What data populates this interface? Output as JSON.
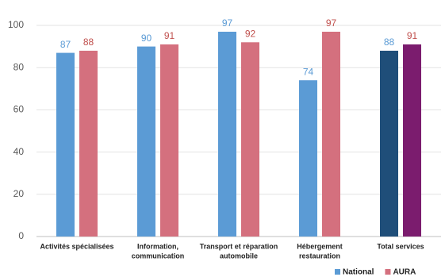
{
  "chart_data": {
    "type": "bar",
    "categories": [
      [
        "Activités spécialisées"
      ],
      [
        "Information,",
        "communication"
      ],
      [
        "Transport et réparation",
        "automobile"
      ],
      [
        "Hébergement",
        "restauration"
      ],
      [
        "Total services"
      ]
    ],
    "series": [
      {
        "name": "National",
        "color": "#5b9bd5",
        "label_color": "#5b9bd5",
        "colors": [
          "#5b9bd5",
          "#5b9bd5",
          "#5b9bd5",
          "#5b9bd5",
          "#1f4e79"
        ],
        "values": [
          87,
          90,
          97,
          74,
          88
        ]
      },
      {
        "name": "AURA",
        "color": "#d4707e",
        "label_color": "#c0504d",
        "colors": [
          "#d4707e",
          "#d4707e",
          "#d4707e",
          "#d4707e",
          "#7b1c6e"
        ],
        "values": [
          88,
          91,
          92,
          97,
          91
        ]
      }
    ],
    "ylim": [
      0,
      100
    ],
    "yticks": [
      0,
      20,
      40,
      60,
      80,
      100
    ],
    "grid": true,
    "legend": "bottom-right"
  }
}
